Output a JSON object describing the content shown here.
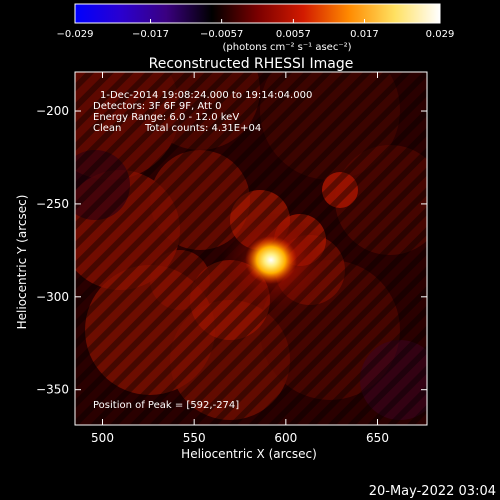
{
  "colorbar": {
    "tick_labels": [
      "−0.029",
      "−0.017",
      "−0.0057",
      "0.0057",
      "0.017",
      "0.029"
    ],
    "tick_values": [
      -0.029,
      -0.017,
      -0.0057,
      0.0057,
      0.017,
      0.029
    ],
    "range": [
      -0.029,
      0.029
    ],
    "units_label": "(photons cm⁻² s⁻¹ asec⁻²)",
    "colormap": [
      "#0000ff",
      "#2a00d0",
      "#3a0080",
      "#000000",
      "#7a0000",
      "#d21a00",
      "#ff8a00",
      "#ffe060",
      "#ffffff"
    ]
  },
  "chart_data": {
    "type": "heatmap",
    "title": "Reconstructed RHESSI Image",
    "xlabel": "Heliocentric X (arcsec)",
    "ylabel": "Heliocentric Y (arcsec)",
    "xlim": [
      485,
      677
    ],
    "ylim": [
      -369,
      -179
    ],
    "x_ticks": [
      500,
      550,
      600,
      650
    ],
    "y_ticks": [
      -200,
      -250,
      -300,
      -350
    ],
    "x_tick_labels": [
      "500",
      "550",
      "600",
      "650"
    ],
    "y_tick_labels": [
      "−200",
      "−250",
      "−300",
      "−350"
    ],
    "peak": [
      592,
      -274
    ],
    "annotations": {
      "time": "1-Dec-2014 19:08:24.000 to 19:14:04.000",
      "detectors": "Detectors: 3F 6F 9F, Att 0",
      "energy": "Energy Range: 6.0 - 12.0 keV",
      "method": "Clean",
      "counts": "Total counts: 4.31E+04",
      "peak_text": "Position of Peak = [592,-274]"
    }
  },
  "footer_timestamp": "20-May-2022 03:04"
}
